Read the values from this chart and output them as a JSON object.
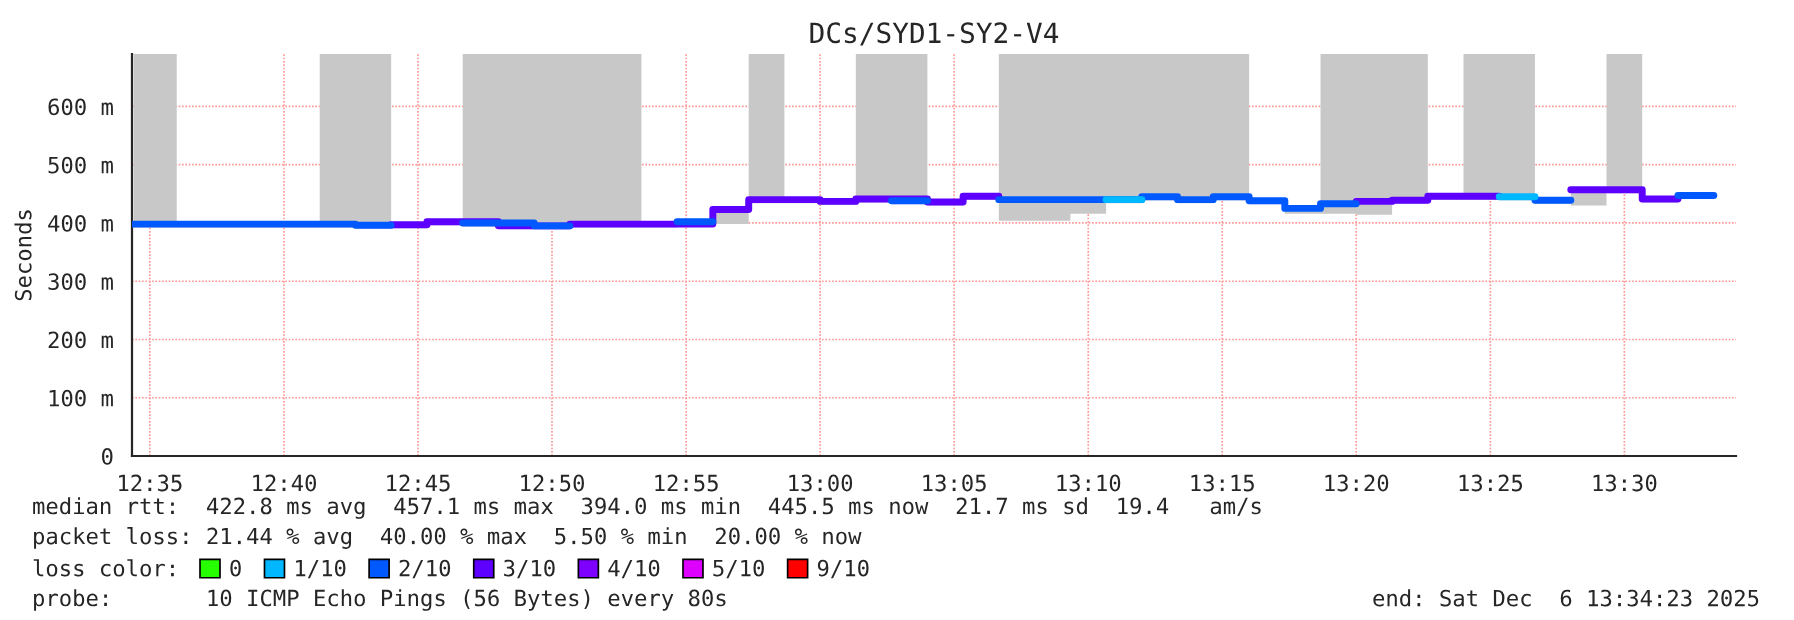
{
  "chart_data": {
    "type": "step",
    "title": "DCs/SYD1-SY2-V4",
    "ylabel": "Seconds",
    "x": [
      12.5733,
      12.6,
      12.6222,
      12.6444,
      12.6667,
      12.6889,
      12.7111,
      12.7333,
      12.7556,
      12.7778,
      12.8,
      12.8222,
      12.8444,
      12.8667,
      12.8889,
      12.9111,
      12.9333,
      12.9556,
      12.9778,
      13.0,
      13.0222,
      13.0444,
      13.0667,
      13.0889,
      13.1111,
      13.1333,
      13.1556,
      13.1778,
      13.2,
      13.2222,
      13.2444,
      13.2667,
      13.2889,
      13.3111,
      13.3333,
      13.3556,
      13.3778,
      13.4,
      13.4222,
      13.4444,
      13.4667,
      13.4889,
      13.5111,
      13.5333,
      13.5556
    ],
    "series": [
      {
        "name": "0",
        "color": "#26ff00",
        "values": [
          null,
          null,
          null,
          null,
          null,
          null,
          null,
          null,
          null,
          null,
          null,
          null,
          null,
          null,
          null,
          null,
          null,
          null,
          null,
          null,
          null,
          null,
          null,
          null,
          null,
          null,
          null,
          null,
          null,
          null,
          null,
          null,
          null,
          null,
          null,
          null,
          null,
          null,
          null,
          null,
          null,
          null,
          null,
          null,
          null
        ]
      },
      {
        "name": "1/10",
        "color": "#00b8ff",
        "values": [
          null,
          null,
          null,
          null,
          null,
          null,
          null,
          null,
          null,
          null,
          null,
          null,
          null,
          null,
          null,
          null,
          null,
          null,
          null,
          null,
          null,
          null,
          null,
          null,
          null,
          null,
          null,
          440,
          440,
          null,
          null,
          null,
          null,
          null,
          null,
          null,
          null,
          null,
          445,
          445,
          null,
          null,
          null,
          null,
          null
        ]
      },
      {
        "name": "2/10",
        "color": "#0059ff",
        "values": [
          398,
          398,
          398,
          398,
          398,
          398,
          396,
          396,
          null,
          400,
          400,
          395,
          395,
          null,
          null,
          402,
          402,
          null,
          null,
          null,
          null,
          438,
          438,
          null,
          440,
          440,
          440,
          440,
          445,
          440,
          445,
          438,
          425,
          433,
          433,
          null,
          null,
          null,
          null,
          439,
          439,
          null,
          null,
          447,
          447
        ],
        "lower": [
          392,
          392,
          392,
          392,
          392,
          392,
          390,
          391,
          396,
          394,
          389,
          389,
          392,
          392,
          392,
          396,
          398,
          434,
          434,
          431,
          435,
          432,
          430,
          440,
          404,
          404,
          416,
          434,
          439,
          434,
          439,
          432,
          416,
          416,
          414,
          433,
          440,
          440,
          439,
          433,
          430,
          451,
          435,
          441,
          441
        ],
        "upper": [
          690,
          402,
          402,
          402,
          402,
          690,
          690,
          401,
          406,
          690,
          690,
          690,
          690,
          690,
          402,
          406,
          427,
          690,
          444,
          441,
          690,
          690,
          440,
          450,
          690,
          690,
          690,
          690,
          690,
          690,
          690,
          442,
          429,
          690,
          690,
          690,
          450,
          690,
          690,
          443,
          461,
          690,
          445,
          451,
          451
        ]
      },
      {
        "name": "3/10",
        "color": "#5e00ff",
        "values": [
          null,
          null,
          null,
          null,
          null,
          null,
          null,
          397,
          402,
          402,
          395,
          395,
          398,
          398,
          398,
          398,
          423,
          440,
          440,
          437,
          441,
          441,
          436,
          446,
          446,
          null,
          null,
          null,
          null,
          null,
          null,
          null,
          null,
          null,
          437,
          439,
          446,
          446,
          446,
          null,
          457,
          457,
          441,
          441,
          null
        ]
      },
      {
        "name": "4/10",
        "color": "#7e00ff",
        "values": [
          null,
          null,
          null,
          null,
          null,
          null,
          null,
          null,
          null,
          null,
          null,
          null,
          null,
          null,
          null,
          null,
          null,
          null,
          null,
          null,
          null,
          null,
          null,
          null,
          null,
          null,
          null,
          null,
          null,
          null,
          null,
          null,
          null,
          null,
          null,
          null,
          null,
          null,
          null,
          null,
          null,
          null,
          null,
          null,
          null
        ]
      },
      {
        "name": "5/10",
        "color": "#dd00ff",
        "values": [
          null,
          null,
          null,
          null,
          null,
          null,
          null,
          null,
          null,
          null,
          null,
          null,
          null,
          null,
          null,
          null,
          null,
          null,
          null,
          null,
          null,
          null,
          null,
          null,
          null,
          null,
          null,
          null,
          null,
          null,
          null,
          null,
          null,
          null,
          null,
          null,
          null,
          null,
          null,
          null,
          null,
          null,
          null,
          null,
          null
        ]
      },
      {
        "name": "9/10",
        "color": "#ff0000",
        "values": [
          null,
          null,
          null,
          null,
          null,
          null,
          null,
          null,
          null,
          null,
          null,
          null,
          null,
          null,
          null,
          null,
          null,
          null,
          null,
          null,
          null,
          null,
          null,
          null,
          null,
          null,
          null,
          null,
          null,
          null,
          null,
          null,
          null,
          null,
          null,
          null,
          null,
          null,
          null,
          null,
          null,
          null,
          null,
          null,
          null
        ]
      }
    ],
    "legend": "bottom",
    "legend_title": "loss color:",
    "xlim": [
      12.5722,
      13.5694
    ],
    "xticks": [
      {
        "value": 12.5833,
        "label": "12:35"
      },
      {
        "value": 12.6667,
        "label": "12:40"
      },
      {
        "value": 12.75,
        "label": "12:45"
      },
      {
        "value": 12.8333,
        "label": "12:50"
      },
      {
        "value": 12.9167,
        "label": "12:55"
      },
      {
        "value": 13.0,
        "label": "13:00"
      },
      {
        "value": 13.0833,
        "label": "13:05"
      },
      {
        "value": 13.1667,
        "label": "13:10"
      },
      {
        "value": 13.25,
        "label": "13:15"
      },
      {
        "value": 13.3333,
        "label": "13:20"
      },
      {
        "value": 13.4167,
        "label": "13:25"
      },
      {
        "value": 13.5,
        "label": "13:30"
      }
    ],
    "ylim": [
      0,
      690
    ],
    "yticks": [
      0,
      {
        "value": 100,
        "label": "100 m"
      },
      {
        "value": 200,
        "label": "200 m"
      },
      {
        "value": 300,
        "label": "300 m"
      },
      {
        "value": 400,
        "label": "400 m"
      },
      {
        "value": 500,
        "label": "500 m"
      },
      {
        "value": 600,
        "label": "600 m"
      }
    ],
    "grid": true,
    "annotations": [
      "median rtt:  422.8 ms avg  457.1 ms max  394.0 ms min  445.5 ms now  21.7 ms sd  19.4   am/s",
      "packet loss: 21.44 % avg  40.00 % max  5.50 % min  20.00 % now",
      "probe:       10 ICMP Echo Pings (56 Bytes) every 80s",
      "end: Sat Dec  6 13:34:23 2025"
    ]
  }
}
